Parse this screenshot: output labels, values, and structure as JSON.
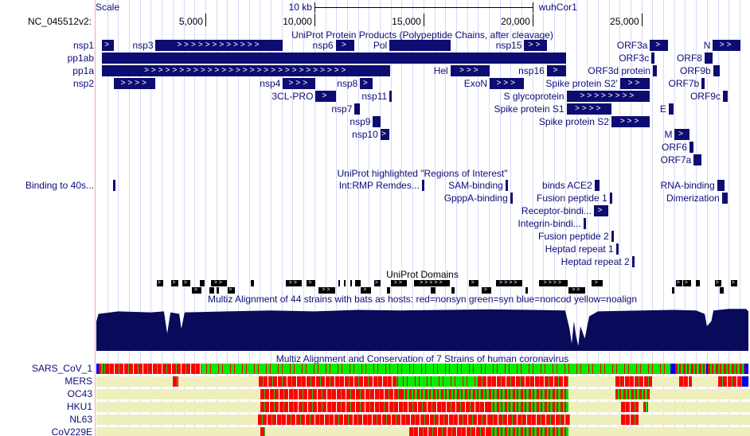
{
  "header": {
    "scale_label": "Scale",
    "scale_bar_label": "10 kb",
    "assembly": "wuhCor1",
    "chrom_label": "NC_045512v2:",
    "ruler_ticks": [
      {
        "pos": 5000,
        "label": "5,000"
      },
      {
        "pos": 10000,
        "label": "10,000"
      },
      {
        "pos": 15000,
        "label": "15,000"
      },
      {
        "pos": 20000,
        "label": "20,000"
      },
      {
        "pos": 25000,
        "label": "25,000"
      }
    ],
    "scale_bar_bp": [
      10000,
      20000
    ],
    "genome_length": 29903
  },
  "colors": {
    "feature": "#0c0c72",
    "text": "#0c0c78",
    "nonsyn": "#ff0000",
    "syn": "#00ee00",
    "noncod": "#0000ee",
    "noalign": "#efefbe",
    "conservation": "#0a0a5a"
  },
  "protein_products": {
    "title": "UniProt Protein Products (Polypeptide Chains, after cleavage)",
    "left_labels": [
      "nsp1",
      "pp1ab",
      "pp1a",
      "nsp2"
    ],
    "features": [
      {
        "row": 0,
        "name": "nsp1",
        "start": 266,
        "end": 805,
        "strand": "+"
      },
      {
        "row": 0,
        "name": "nsp3",
        "start": 2720,
        "end": 8554,
        "strand": "+"
      },
      {
        "row": 0,
        "name": "nsp6",
        "start": 10973,
        "end": 11842,
        "strand": "+"
      },
      {
        "row": 0,
        "name": "Pol",
        "start": 13442,
        "end": 16236,
        "strand": ""
      },
      {
        "row": 0,
        "name": "nsp15",
        "start": 19621,
        "end": 20658,
        "strand": "+"
      },
      {
        "row": 0,
        "name": "ORF3a",
        "start": 25393,
        "end": 26220,
        "strand": "+"
      },
      {
        "row": 0,
        "name": "N",
        "start": 28274,
        "end": 29533,
        "strand": "+"
      },
      {
        "row": 1,
        "name": "pp1ab",
        "start": 266,
        "end": 21555,
        "strand": ""
      },
      {
        "row": 1,
        "name": "ORF3c",
        "start": 25457,
        "end": 25582,
        "strand": ""
      },
      {
        "row": 1,
        "name": "ORF8",
        "start": 27894,
        "end": 28259,
        "strand": ""
      },
      {
        "row": 2,
        "name": "pp1a",
        "start": 266,
        "end": 13483,
        "strand": "+"
      },
      {
        "row": 2,
        "name": "Hel",
        "start": 16237,
        "end": 18039,
        "strand": "+"
      },
      {
        "row": 2,
        "name": "nsp16",
        "start": 20659,
        "end": 21552,
        "strand": "+"
      },
      {
        "row": 2,
        "name": "ORF3d protein",
        "start": 25524,
        "end": 25697,
        "strand": ""
      },
      {
        "row": 2,
        "name": "ORF9b",
        "start": 28284,
        "end": 28577,
        "strand": ""
      },
      {
        "row": 3,
        "name": "nsp2",
        "start": 806,
        "end": 2719,
        "strand": "+"
      },
      {
        "row": 3,
        "name": "nsp4",
        "start": 8555,
        "end": 10054,
        "strand": "+"
      },
      {
        "row": 3,
        "name": "nsp8",
        "start": 12092,
        "end": 12685,
        "strand": "+"
      },
      {
        "row": 3,
        "name": "ExoN",
        "start": 18040,
        "end": 19620,
        "strand": "+"
      },
      {
        "row": 3,
        "name": "Spike protein S2'",
        "start": 24015,
        "end": 25384,
        "strand": "+"
      },
      {
        "row": 3,
        "name": "ORF7b",
        "start": 27756,
        "end": 27887,
        "strand": ""
      },
      {
        "row": 4,
        "name": "3CL-PRO",
        "start": 10055,
        "end": 10972,
        "strand": "+"
      },
      {
        "row": 4,
        "name": "nsp11",
        "start": 13442,
        "end": 13480,
        "strand": ""
      },
      {
        "row": 4,
        "name": "S glycoprotein",
        "start": 21563,
        "end": 25384,
        "strand": "+"
      },
      {
        "row": 4,
        "name": "ORF9c",
        "start": 28734,
        "end": 28955,
        "strand": ""
      },
      {
        "row": 5,
        "name": "nsp7",
        "start": 11843,
        "end": 12091,
        "strand": "+"
      },
      {
        "row": 5,
        "name": "Spike protein S1",
        "start": 21563,
        "end": 23620,
        "strand": "+"
      },
      {
        "row": 5,
        "name": "E",
        "start": 26245,
        "end": 26472,
        "strand": ""
      },
      {
        "row": 6,
        "name": "nsp9",
        "start": 12686,
        "end": 13024,
        "strand": "+"
      },
      {
        "row": 6,
        "name": "Spike protein S2",
        "start": 23621,
        "end": 25384,
        "strand": "+"
      },
      {
        "row": 7,
        "name": "nsp10",
        "start": 13025,
        "end": 13441,
        "strand": "+"
      },
      {
        "row": 7,
        "name": "M",
        "start": 26523,
        "end": 27191,
        "strand": "+"
      },
      {
        "row": 8,
        "name": "ORF6",
        "start": 27202,
        "end": 27387,
        "strand": ""
      },
      {
        "row": 9,
        "name": "ORF7a",
        "start": 27394,
        "end": 27759,
        "strand": ""
      }
    ]
  },
  "regions_of_interest": {
    "title": "UniProt highlighted \"Regions of Interest\"",
    "left_labels": [
      "Binding to 40s..."
    ],
    "features": [
      {
        "row": 0,
        "name": "Binding to 40s...",
        "start": 766,
        "end": 830,
        "strand": "",
        "label_left": true
      },
      {
        "row": 0,
        "name": "Int:RMP Remdes...",
        "start": 14927,
        "end": 14960,
        "strand": ""
      },
      {
        "row": 0,
        "name": "SAM-binding",
        "start": 18759,
        "end": 18790,
        "strand": ""
      },
      {
        "row": 0,
        "name": "binds ACE2",
        "start": 22847,
        "end": 23066,
        "strand": ""
      },
      {
        "row": 0,
        "name": "RNA-binding",
        "start": 28467,
        "end": 28795,
        "strand": "+"
      },
      {
        "row": 1,
        "name": "GpppA-binding",
        "start": 18978,
        "end": 19010,
        "strand": ""
      },
      {
        "row": 1,
        "name": "Fusion peptide 1",
        "start": 23540,
        "end": 23600,
        "strand": ""
      },
      {
        "row": 1,
        "name": "Dimerization",
        "start": 28686,
        "end": 28942,
        "strand": "+"
      },
      {
        "row": 2,
        "name": "Receptor-bindi...",
        "start": 22818,
        "end": 23474,
        "strand": "+"
      },
      {
        "row": 3,
        "name": "Integrin-bindi...",
        "start": 22336,
        "end": 22370,
        "strand": ""
      },
      {
        "row": 4,
        "name": "Fusion peptide 2",
        "start": 23613,
        "end": 23680,
        "strand": ""
      },
      {
        "row": 5,
        "name": "Heptad repeat 1",
        "start": 23832,
        "end": 23942,
        "strand": ""
      },
      {
        "row": 6,
        "name": "Heptad repeat 2",
        "start": 24562,
        "end": 24635,
        "strand": ""
      }
    ]
  },
  "domains": {
    "title": "UniProt Domains",
    "rows": [
      [
        [
          2774,
          3066
        ],
        [
          3431,
          3760
        ],
        [
          3942,
          4307
        ],
        [
          4745,
          4964
        ],
        [
          5256,
          5986
        ],
        [
          7081,
          7227
        ],
        [
          8687,
          9417
        ],
        [
          9636,
          10038
        ],
        [
          11096,
          11169
        ],
        [
          11352,
          11425
        ],
        [
          11644,
          11680
        ],
        [
          11863,
          12118
        ],
        [
          12739,
          13031
        ],
        [
          13505,
          14235
        ],
        [
          14564,
          16206
        ],
        [
          17082,
          17520
        ],
        [
          18323,
          19528
        ],
        [
          20294,
          21608
        ],
        [
          22703,
          23214
        ],
        [
          26572,
          26864
        ],
        [
          26901,
          27266
        ],
        [
          27485,
          27667
        ],
        [
          28361,
          28653
        ],
        [
          29091,
          29383
        ]
      ],
      [
        [
          4380,
          4818
        ],
        [
          5183,
          5402
        ],
        [
          5512,
          5621
        ],
        [
          6023,
          6351
        ],
        [
          10184,
          10950
        ],
        [
          12118,
          12593
        ],
        [
          13323,
          13469
        ],
        [
          15330,
          15549
        ],
        [
          16279,
          16425
        ],
        [
          17666,
          18104
        ],
        [
          19674,
          19783
        ],
        [
          21645,
          22411
        ],
        [
          26390,
          26499
        ],
        [
          28580,
          28762
        ]
      ]
    ]
  },
  "bat_multiz": {
    "title": "Multiz Alignment of 44 strains with bats as hosts: red=nonsyn green=syn blue=noncod yellow=noalign",
    "conservation": [
      [
        0,
        0.6
      ],
      [
        100,
        0.75
      ],
      [
        1000,
        0.8
      ],
      [
        2500,
        0.78
      ],
      [
        3100,
        0.8
      ],
      [
        3250,
        0.35
      ],
      [
        3400,
        0.78
      ],
      [
        3800,
        0.75
      ],
      [
        3900,
        0.45
      ],
      [
        4050,
        0.78
      ],
      [
        6000,
        0.8
      ],
      [
        8000,
        0.82
      ],
      [
        10000,
        0.8
      ],
      [
        12000,
        0.83
      ],
      [
        14000,
        0.82
      ],
      [
        16000,
        0.83
      ],
      [
        18000,
        0.84
      ],
      [
        20000,
        0.83
      ],
      [
        21500,
        0.82
      ],
      [
        21700,
        0.45
      ],
      [
        21800,
        0.15
      ],
      [
        21900,
        0.6
      ],
      [
        22000,
        0.3
      ],
      [
        22100,
        0.1
      ],
      [
        22200,
        0.5
      ],
      [
        22400,
        0.25
      ],
      [
        22600,
        0.7
      ],
      [
        23000,
        0.8
      ],
      [
        25000,
        0.82
      ],
      [
        26500,
        0.83
      ],
      [
        27500,
        0.82
      ],
      [
        27900,
        0.75
      ],
      [
        28000,
        0.5
      ],
      [
        28200,
        0.6
      ],
      [
        28300,
        0.82
      ],
      [
        29000,
        0.85
      ],
      [
        29800,
        0.85
      ],
      [
        29903,
        0.8
      ]
    ]
  },
  "human_multiz": {
    "title": "Multiz Alignment and Conservation of 7 Strains of human coronavirus",
    "species": [
      {
        "name": "SARS_CoV_1",
        "segments": [
          [
            0,
            100,
            "blue"
          ],
          [
            100,
            400,
            "mix"
          ],
          [
            400,
            4818,
            "red"
          ],
          [
            4818,
            26317,
            "green"
          ],
          [
            26317,
            26536,
            "blue"
          ],
          [
            26536,
            27959,
            "mix"
          ],
          [
            27959,
            28050,
            "blue"
          ],
          [
            28050,
            29711,
            "mix"
          ],
          [
            29711,
            29903,
            "blue"
          ]
        ]
      },
      {
        "name": "MERS",
        "segments": [
          [
            3504,
            3760,
            "red"
          ],
          [
            7446,
            13830,
            "red"
          ],
          [
            13830,
            17485,
            "green"
          ],
          [
            17485,
            21645,
            "red"
          ],
          [
            23798,
            25477,
            "red"
          ],
          [
            26718,
            27302,
            "red"
          ],
          [
            28507,
            29600,
            "red"
          ],
          [
            29600,
            29903,
            "blue"
          ]
        ]
      },
      {
        "name": "OC43",
        "segments": [
          [
            7519,
            14000,
            "red"
          ],
          [
            14000,
            18000,
            "mix"
          ],
          [
            18000,
            21645,
            "mix"
          ],
          [
            23798,
            25368,
            "mix"
          ]
        ]
      },
      {
        "name": "HKU1",
        "segments": [
          [
            7519,
            13000,
            "red"
          ],
          [
            13000,
            18000,
            "red"
          ],
          [
            18000,
            21645,
            "mix"
          ],
          [
            24054,
            24857,
            "red"
          ],
          [
            25076,
            25295,
            "mix"
          ]
        ]
      },
      {
        "name": "NL63",
        "segments": [
          [
            7410,
            18000,
            "red"
          ],
          [
            18000,
            21718,
            "red"
          ],
          [
            24054,
            24857,
            "red"
          ]
        ]
      },
      {
        "name": "CoV229E",
        "segments": [
          [
            7519,
            7738,
            "red"
          ],
          [
            14345,
            18000,
            "red"
          ],
          [
            18000,
            21645,
            "mix"
          ]
        ]
      }
    ]
  }
}
